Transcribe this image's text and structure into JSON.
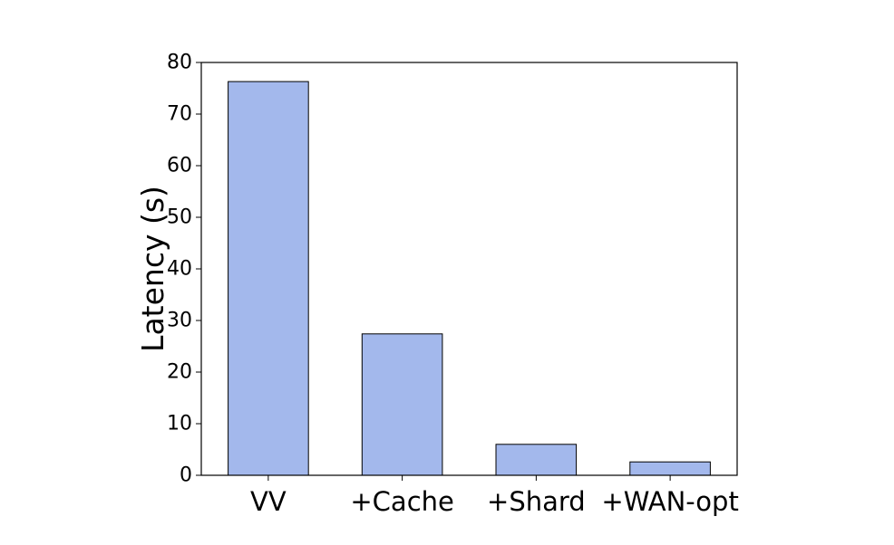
{
  "chart_data": {
    "type": "bar",
    "categories": [
      "VV",
      "+Cache",
      "+Shard",
      "+WAN-opt"
    ],
    "values": [
      76.3,
      27.4,
      6.0,
      2.6
    ],
    "title": "",
    "xlabel": "",
    "ylabel": "Latency (s)",
    "ylim": [
      0,
      80
    ],
    "yticks": [
      0,
      10,
      20,
      30,
      40,
      50,
      60,
      70,
      80
    ],
    "grid": false,
    "legend": "none",
    "bar_color": "#a3b8ec",
    "edge_color": "#000000"
  }
}
